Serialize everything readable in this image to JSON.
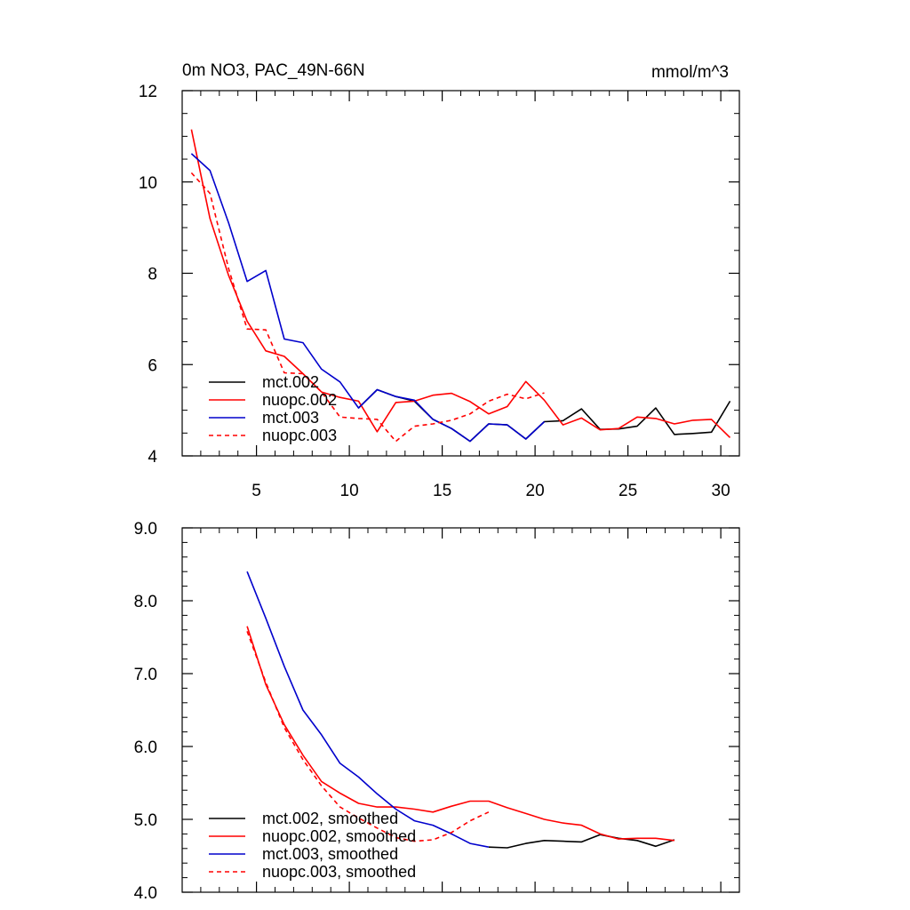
{
  "chart_data": [
    {
      "type": "line",
      "title": "0m NO3, PAC_49N-66N",
      "units": "mmol/m^3",
      "xlim": [
        1,
        31
      ],
      "ylim": [
        4,
        12
      ],
      "xticks": [
        5,
        10,
        15,
        20,
        25,
        30
      ],
      "xtick_labels": [
        "5",
        "10",
        "15",
        "20",
        "25",
        "30"
      ],
      "yticks": [
        4,
        6,
        8,
        10,
        12
      ],
      "ytick_labels": [
        "4",
        "6",
        "8",
        "10",
        "12"
      ],
      "legend_position": "bottom-left",
      "series": [
        {
          "name": "mct.002",
          "color": "#000000",
          "dash": "solid",
          "x": [
            10.5,
            11.5,
            12.5,
            13.5,
            14.5,
            15.5,
            16.5,
            17.5,
            18.5,
            19.5,
            20.5,
            21.5,
            22.5,
            23.5,
            24.5,
            25.5,
            26.5,
            27.5,
            28.5,
            29.5,
            30.5
          ],
          "y": [
            5.05,
            5.45,
            5.3,
            5.2,
            4.8,
            4.6,
            4.32,
            4.7,
            4.68,
            4.37,
            4.75,
            4.77,
            5.03,
            4.58,
            4.59,
            4.65,
            5.05,
            4.47,
            4.49,
            4.52,
            5.2
          ]
        },
        {
          "name": "nuopc.002",
          "color": "#ff0000",
          "dash": "solid",
          "x": [
            1.5,
            2.5,
            3.5,
            4.5,
            5.5,
            6.5,
            7.5,
            8.5,
            9.5,
            10.5,
            11.5,
            12.5,
            13.5,
            14.5,
            15.5,
            16.5,
            17.5,
            18.5,
            19.5,
            20.5,
            21.5,
            22.5,
            23.5,
            24.5,
            25.5,
            26.5,
            27.5,
            28.5,
            29.5,
            30.5
          ],
          "y": [
            11.15,
            9.2,
            7.95,
            6.95,
            6.3,
            6.18,
            5.8,
            5.4,
            5.28,
            5.2,
            4.53,
            5.17,
            5.2,
            5.33,
            5.37,
            5.19,
            4.92,
            5.08,
            5.63,
            5.22,
            4.68,
            4.83,
            4.57,
            4.6,
            4.85,
            4.82,
            4.7,
            4.78,
            4.8,
            4.4
          ]
        },
        {
          "name": "mct.003",
          "color": "#0000cc",
          "dash": "solid",
          "x": [
            1.5,
            2.5,
            3.5,
            4.5,
            5.5,
            6.5,
            7.5,
            8.5,
            9.5,
            10.5,
            11.5,
            12.5,
            13.5,
            14.5,
            15.5,
            16.5,
            17.5,
            18.5,
            19.5,
            20.5
          ],
          "y": [
            10.62,
            10.25,
            9.1,
            7.82,
            8.06,
            6.56,
            6.48,
            5.9,
            5.62,
            5.05,
            5.45,
            5.3,
            5.22,
            4.8,
            4.6,
            4.32,
            4.7,
            4.68,
            4.37,
            4.75
          ]
        },
        {
          "name": "nuopc.003",
          "color": "#ff0000",
          "dash": "dashed",
          "x": [
            1.5,
            2.5,
            3.5,
            4.5,
            5.5,
            6.5,
            7.5,
            8.5,
            9.5,
            10.5,
            11.5,
            12.5,
            13.5,
            14.5,
            15.5,
            16.5,
            17.5,
            18.5,
            19.5,
            20.5
          ],
          "y": [
            10.2,
            9.75,
            8.1,
            6.78,
            6.76,
            5.82,
            5.8,
            5.4,
            4.85,
            4.82,
            4.8,
            4.32,
            4.65,
            4.7,
            4.78,
            4.92,
            5.2,
            5.35,
            5.25,
            5.38
          ]
        }
      ]
    },
    {
      "type": "line",
      "title": "",
      "xlim": [
        1,
        31
      ],
      "ylim": [
        4.0,
        9.0
      ],
      "xticks": [
        5,
        10,
        15,
        20,
        25,
        30
      ],
      "xtick_labels": [],
      "yticks": [
        4.0,
        5.0,
        6.0,
        7.0,
        8.0,
        9.0
      ],
      "ytick_labels": [
        "4.0",
        "5.0",
        "6.0",
        "7.0",
        "8.0",
        "9.0"
      ],
      "legend_position": "bottom-left",
      "series": [
        {
          "name": "mct.002, smoothed",
          "color": "#000000",
          "dash": "solid",
          "x": [
            17.5,
            18.5,
            19.5,
            20.5,
            21.5,
            22.5,
            23.5,
            24.5,
            25.5,
            26.5,
            27.5
          ],
          "y": [
            4.62,
            4.61,
            4.67,
            4.71,
            4.7,
            4.69,
            4.79,
            4.74,
            4.71,
            4.63,
            4.72
          ]
        },
        {
          "name": "nuopc.002, smoothed",
          "color": "#ff0000",
          "dash": "solid",
          "x": [
            4.5,
            5.5,
            6.5,
            7.5,
            8.5,
            9.5,
            10.5,
            11.5,
            12.5,
            13.5,
            14.5,
            15.5,
            16.5,
            17.5,
            18.5,
            19.5,
            20.5,
            21.5,
            22.5,
            23.5,
            24.5,
            25.5,
            26.5,
            27.5
          ],
          "y": [
            7.65,
            6.85,
            6.3,
            5.88,
            5.52,
            5.36,
            5.22,
            5.17,
            5.17,
            5.14,
            5.1,
            5.18,
            5.25,
            5.25,
            5.16,
            5.08,
            5.0,
            4.95,
            4.92,
            4.8,
            4.73,
            4.74,
            4.74,
            4.71
          ]
        },
        {
          "name": "mct.003, smoothed",
          "color": "#0000cc",
          "dash": "solid",
          "x": [
            4.5,
            5.5,
            6.5,
            7.5,
            8.5,
            9.5,
            10.5,
            11.5,
            12.5,
            13.5,
            14.5,
            15.5,
            16.5,
            17.5
          ],
          "y": [
            8.4,
            7.76,
            7.1,
            6.5,
            6.16,
            5.77,
            5.58,
            5.35,
            5.14,
            4.98,
            4.92,
            4.8,
            4.67,
            4.62
          ]
        },
        {
          "name": "nuopc.003, smoothed",
          "color": "#ff0000",
          "dash": "dashed",
          "x": [
            4.5,
            5.5,
            6.5,
            7.5,
            8.5,
            9.5,
            10.5,
            11.5,
            12.5,
            13.5,
            14.5,
            15.5,
            16.5,
            17.5
          ],
          "y": [
            7.58,
            6.88,
            6.26,
            5.82,
            5.46,
            5.17,
            5.02,
            4.88,
            4.75,
            4.7,
            4.72,
            4.82,
            4.98,
            5.1
          ]
        }
      ]
    }
  ]
}
